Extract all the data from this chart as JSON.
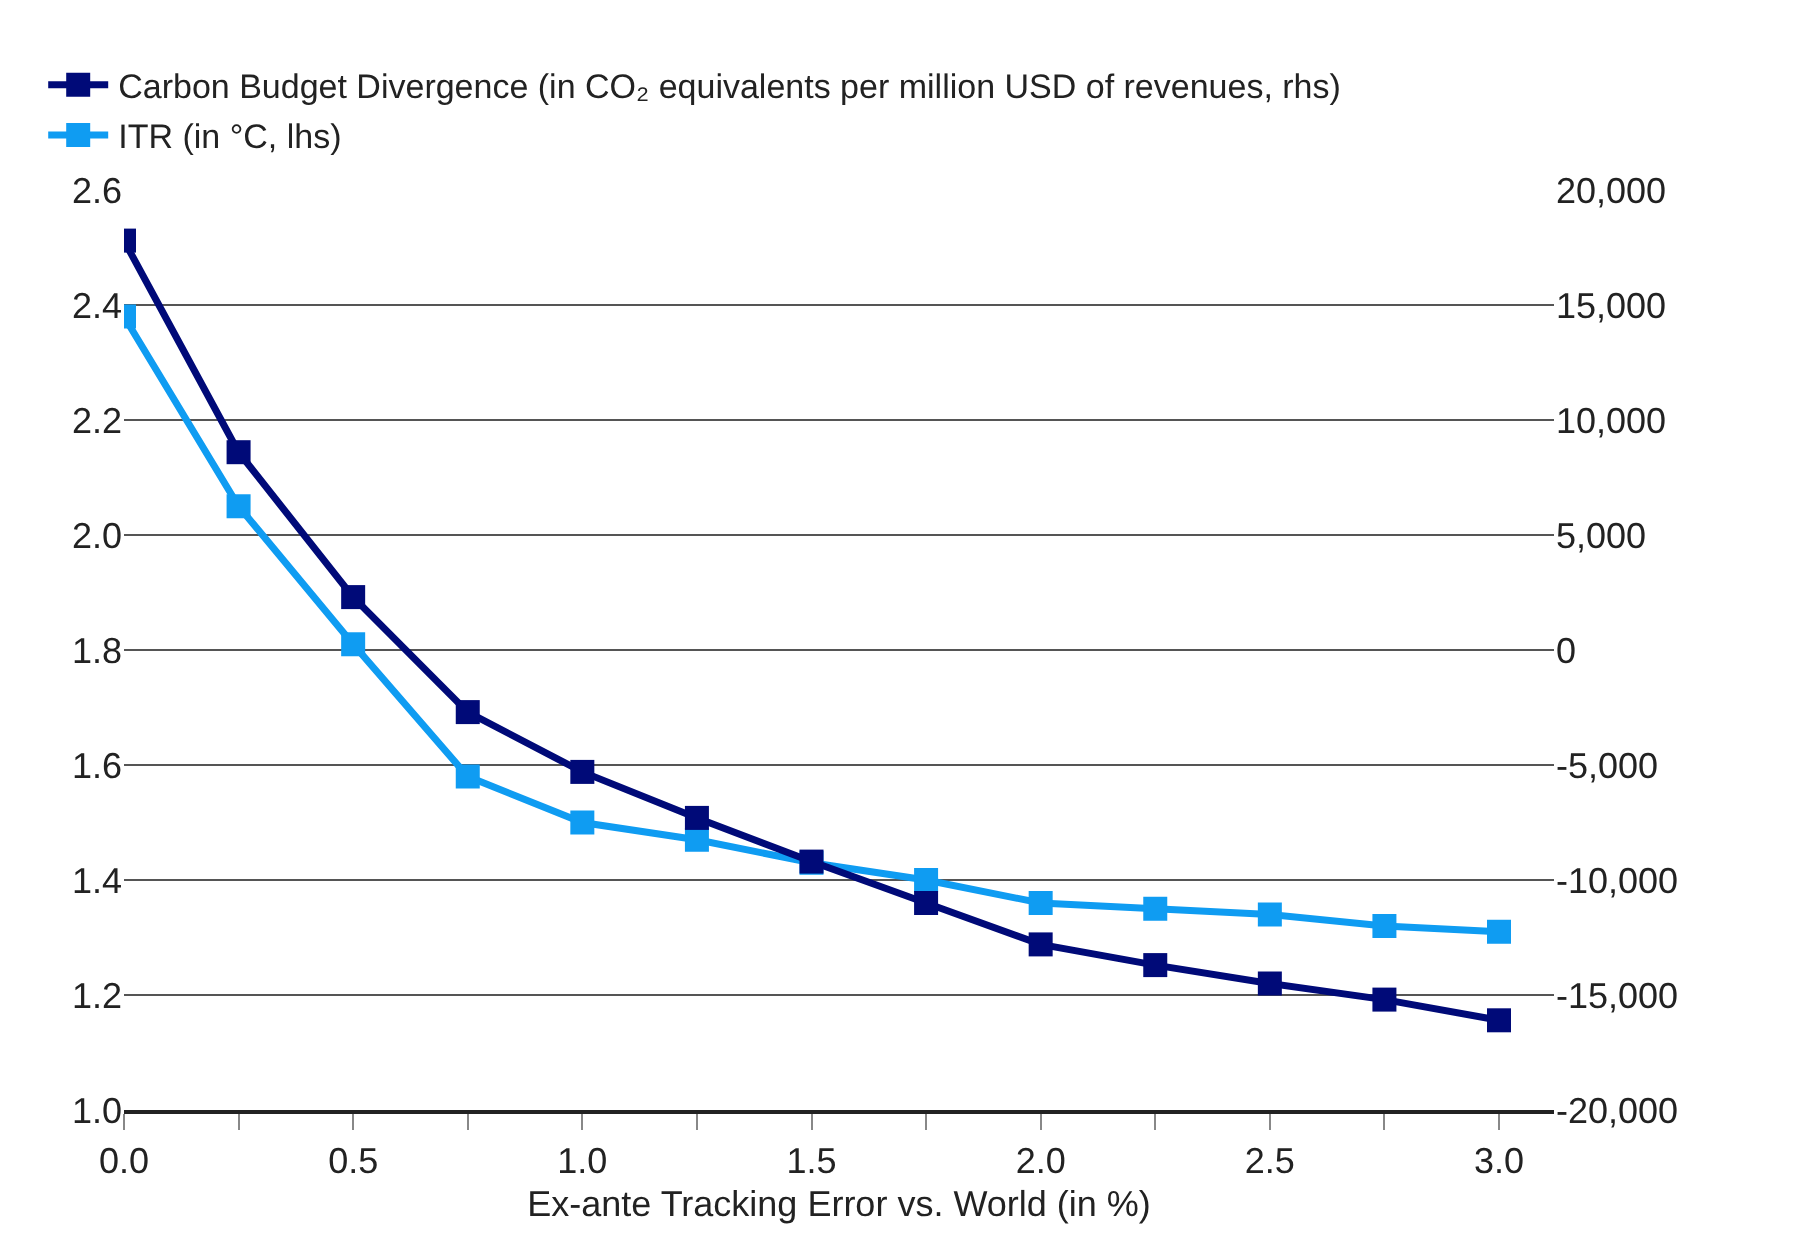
{
  "chart_data": {
    "type": "line",
    "xlabel": "Ex-ante Tracking Error vs. World (in %)",
    "x": [
      0,
      0.25,
      0.5,
      0.75,
      1.0,
      1.25,
      1.5,
      1.75,
      2.0,
      2.25,
      2.5,
      2.75,
      3.0
    ],
    "series": [
      {
        "name": "ITR (in °C, lhs)",
        "color": "#0f9cf2",
        "values": [
          2.38,
          2.05,
          1.81,
          1.58,
          1.5,
          1.47,
          1.43,
          1.4,
          1.36,
          1.35,
          1.34,
          1.32,
          1.31
        ]
      },
      {
        "name": "Carbon Budget Divergence (in CO₂ equivalents per million USD of revenues, rhs)",
        "color": "#000a78",
        "axis": "y2",
        "values": [
          17800,
          8600,
          2300,
          -2700,
          -5300,
          -7300,
          -9200,
          -11000,
          -12800,
          -13700,
          -14500,
          -15200,
          -16100
        ]
      }
    ],
    "xlim": [
      0,
      3.12
    ],
    "xticks": [
      {
        "value": 0,
        "label": "0.0"
      },
      {
        "value": 0.25,
        "label": null
      },
      {
        "value": 0.5,
        "label": "0.5"
      },
      {
        "value": 0.75,
        "label": null
      },
      {
        "value": 1.0,
        "label": "1.0"
      },
      {
        "value": 1.25,
        "label": null
      },
      {
        "value": 1.5,
        "label": "1.5"
      },
      {
        "value": 1.75,
        "label": null
      },
      {
        "value": 2.0,
        "label": "2.0"
      },
      {
        "value": 2.25,
        "label": null
      },
      {
        "value": 2.5,
        "label": "2.5"
      },
      {
        "value": 2.75,
        "label": null
      },
      {
        "value": 3.0,
        "label": "3.0"
      }
    ],
    "ylim": [
      1.0,
      2.6
    ],
    "yticks": [
      {
        "value": 1.0,
        "label": "1.0"
      },
      1.2,
      1.4,
      1.6,
      1.8,
      {
        "value": 2.0,
        "label": "2.0"
      },
      2.2,
      2.4,
      2.6
    ],
    "y2lim": [
      -20000,
      20000
    ],
    "y2ticks": [
      {
        "value": -20000,
        "label": "-20,000"
      },
      {
        "value": -15000,
        "label": "-15,000"
      },
      {
        "value": -10000,
        "label": "-10,000"
      },
      {
        "value": -5000,
        "label": "-5,000"
      },
      0,
      {
        "value": 5000,
        "label": "5,000"
      },
      {
        "value": 10000,
        "label": "10,000"
      },
      {
        "value": 15000,
        "label": "15,000"
      },
      {
        "value": 20000,
        "label": "20,000"
      }
    ],
    "grid": "y",
    "legend": "top left",
    "marker": "square",
    "line_style": "solid"
  }
}
